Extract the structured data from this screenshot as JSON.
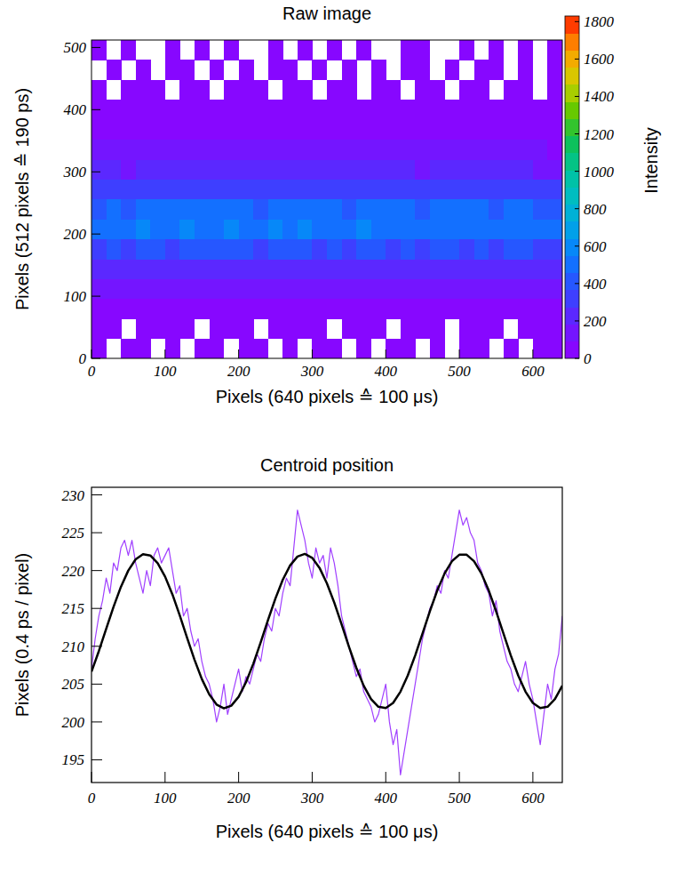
{
  "chart_data": [
    {
      "type": "heatmap",
      "title": "Raw image",
      "x_label": "Pixels (640 pixels ≙ 100 μs)",
      "y_label": "Pixels (512 pixels ≙ 190 ps)",
      "xlim": [
        0,
        640
      ],
      "ylim": [
        0,
        512
      ],
      "xticks": [
        0,
        100,
        200,
        300,
        400,
        500,
        600
      ],
      "yticks": [
        0,
        100,
        200,
        300,
        400,
        500
      ],
      "color_label": "Intensity",
      "color_range": [
        0,
        1830
      ],
      "color_ticks": [
        0,
        200,
        400,
        600,
        800,
        1000,
        1200,
        1400,
        1600,
        1800
      ],
      "x_bins": [
        0,
        20,
        40,
        60,
        80,
        100,
        120,
        140,
        160,
        180,
        200,
        220,
        240,
        260,
        280,
        300,
        320,
        340,
        360,
        380,
        400,
        420,
        440,
        460,
        480,
        500,
        520,
        540,
        560,
        580,
        600,
        620,
        640
      ],
      "y_bins": [
        0,
        32,
        64,
        96,
        128,
        160,
        192,
        224,
        256,
        288,
        320,
        352,
        384,
        416,
        448,
        480,
        512
      ],
      "cells": [
        [
          12,
          0,
          18,
          25,
          0,
          10,
          0,
          15,
          22,
          0,
          8,
          14,
          0,
          20,
          0,
          11,
          16,
          0,
          9,
          0,
          24,
          13,
          0,
          17,
          0,
          10,
          21,
          0,
          14,
          0,
          19,
          8
        ],
        [
          28,
          20,
          0,
          31,
          24,
          18,
          35,
          0,
          22,
          27,
          30,
          0,
          26,
          19,
          33,
          21,
          0,
          29,
          25,
          17,
          0,
          32,
          23,
          28,
          0,
          20,
          26,
          34,
          0,
          24,
          18,
          30
        ],
        [
          48,
          55,
          42,
          60,
          51,
          46,
          58,
          44,
          53,
          62,
          49,
          45,
          57,
          50,
          61,
          47,
          52,
          43,
          59,
          54,
          48,
          56,
          41,
          63,
          50,
          46,
          55,
          49,
          58,
          44,
          52,
          47
        ],
        [
          105,
          118,
          96,
          124,
          110,
          102,
          130,
          99,
          115,
          127,
          108,
          95,
          121,
          113,
          134,
          101,
          117,
          98,
          125,
          111,
          104,
          129,
          97,
          119,
          112,
          106,
          123,
          100,
          116,
          109,
          103,
          94
        ],
        [
          210,
          235,
          198,
          242,
          220,
          205,
          250,
          215,
          228,
          245,
          212,
          200,
          238,
          224,
          255,
          209,
          231,
          202,
          246,
          218,
          207,
          240,
          196,
          233,
          219,
          211,
          236,
          204,
          226,
          214,
          199,
          192
        ],
        [
          360,
          395,
          340,
          405,
          372,
          355,
          420,
          366,
          388,
          410,
          378,
          350,
          400,
          382,
          425,
          361,
          392,
          348,
          415,
          370,
          357,
          402,
          345,
          390,
          368,
          362,
          398,
          352,
          385,
          371,
          344,
          336
        ],
        [
          480,
          530,
          470,
          555,
          505,
          495,
          575,
          500,
          540,
          560,
          515,
          490,
          550,
          525,
          580,
          498,
          545,
          485,
          565,
          510,
          492,
          548,
          478,
          535,
          512,
          500,
          542,
          488,
          520,
          506,
          472,
          460
        ],
        [
          450,
          490,
          440,
          505,
          470,
          462,
          520,
          466,
          488,
          512,
          475,
          455,
          498,
          480,
          525,
          458,
          492,
          448,
          510,
          472,
          460,
          495,
          445,
          485,
          468,
          462,
          490,
          452,
          478,
          466,
          438,
          430
        ],
        [
          320,
          345,
          310,
          355,
          330,
          322,
          362,
          326,
          342,
          358,
          333,
          315,
          350,
          336,
          365,
          318,
          344,
          312,
          356,
          329,
          320,
          347,
          308,
          340,
          328,
          322,
          346,
          314,
          334,
          327,
          306,
          300
        ],
        [
          190,
          210,
          182,
          218,
          198,
          192,
          225,
          195,
          206,
          222,
          200,
          185,
          214,
          202,
          228,
          188,
          208,
          183,
          220,
          197,
          190,
          211,
          180,
          205,
          196,
          192,
          209,
          186,
          201,
          195,
          178,
          172
        ],
        [
          105,
          118,
          98,
          124,
          110,
          103,
          128,
          106,
          115,
          126,
          109,
          100,
          121,
          112,
          130,
          102,
          116,
          97,
          125,
          108,
          104,
          119,
          96,
          114,
          107,
          103,
          117,
          99,
          111,
          106,
          94,
          90
        ],
        [
          58,
          66,
          52,
          70,
          61,
          56,
          73,
          59,
          64,
          71,
          60,
          54,
          68,
          62,
          75,
          55,
          65,
          51,
          72,
          60,
          57,
          67,
          50,
          63,
          59,
          56,
          66,
          53,
          61,
          58,
          49,
          46
        ],
        [
          34,
          40,
          30,
          42,
          36,
          33,
          45,
          35,
          38,
          43,
          36,
          31,
          41,
          37,
          46,
          32,
          39,
          29,
          44,
          35,
          33,
          40,
          28,
          38,
          35,
          32,
          39,
          30,
          36,
          34,
          27,
          25
        ],
        [
          20,
          0,
          24,
          18,
          26,
          0,
          21,
          17,
          0,
          23,
          19,
          25,
          0,
          22,
          16,
          0,
          27,
          18,
          0,
          20,
          24,
          0,
          19,
          21,
          0,
          17,
          23,
          0,
          20,
          18,
          0,
          22
        ],
        [
          0,
          14,
          0,
          11,
          0,
          16,
          9,
          0,
          13,
          0,
          12,
          0,
          15,
          10,
          0,
          14,
          0,
          11,
          0,
          13,
          0,
          9,
          15,
          0,
          12,
          0,
          10,
          14,
          0,
          11,
          0,
          13
        ],
        [
          8,
          0,
          12,
          0,
          0,
          10,
          0,
          9,
          0,
          14,
          0,
          0,
          11,
          0,
          8,
          0,
          13,
          0,
          10,
          0,
          0,
          9,
          12,
          0,
          0,
          11,
          0,
          8,
          0,
          10,
          0,
          12
        ]
      ]
    },
    {
      "type": "line",
      "title": "Centroid position",
      "x_label": "Pixels (640 pixels ≙ 100 μs)",
      "y_label": "Pixels (0.4 ps / pixel)",
      "xlim": [
        0,
        640
      ],
      "ylim": [
        192,
        231
      ],
      "xticks": [
        0,
        100,
        200,
        300,
        400,
        500,
        600
      ],
      "yticks": [
        195,
        200,
        205,
        210,
        215,
        220,
        225,
        230
      ],
      "series": [
        {
          "color": "#a040ff",
          "x": [
            0,
            5,
            10,
            15,
            20,
            25,
            30,
            35,
            40,
            45,
            50,
            55,
            60,
            65,
            70,
            75,
            80,
            85,
            90,
            95,
            100,
            105,
            110,
            115,
            120,
            125,
            130,
            135,
            140,
            145,
            150,
            155,
            160,
            165,
            170,
            175,
            180,
            185,
            190,
            195,
            200,
            205,
            210,
            215,
            220,
            225,
            230,
            235,
            240,
            245,
            250,
            255,
            260,
            265,
            270,
            275,
            280,
            285,
            290,
            295,
            300,
            305,
            310,
            315,
            320,
            325,
            330,
            335,
            340,
            345,
            350,
            355,
            360,
            365,
            370,
            375,
            380,
            385,
            390,
            395,
            400,
            405,
            410,
            415,
            420,
            425,
            430,
            435,
            440,
            445,
            450,
            455,
            460,
            465,
            470,
            475,
            480,
            485,
            490,
            495,
            500,
            505,
            510,
            515,
            520,
            525,
            530,
            535,
            540,
            545,
            550,
            555,
            560,
            565,
            570,
            575,
            580,
            585,
            590,
            595,
            600,
            605,
            610,
            615,
            620,
            625,
            630,
            635,
            640
          ],
          "values": [
            207,
            211,
            214,
            216,
            219,
            217,
            221,
            220,
            223,
            224,
            222,
            224,
            221,
            219,
            217,
            220,
            218,
            222,
            223,
            221,
            222,
            223,
            220,
            217,
            218,
            214,
            215,
            212,
            210,
            211,
            208,
            206,
            205,
            203,
            200,
            202,
            205,
            201,
            203,
            205,
            207,
            204,
            206,
            205,
            207,
            209,
            208,
            211,
            213,
            212,
            215,
            214,
            217,
            219,
            218,
            223,
            228,
            226,
            224,
            221,
            219,
            223,
            221,
            222,
            219,
            223,
            221,
            218,
            214,
            212,
            210,
            208,
            206,
            207,
            204,
            203,
            202,
            200,
            201,
            203,
            205,
            200,
            197,
            199,
            193,
            196,
            199,
            202,
            205,
            208,
            211,
            213,
            215,
            216,
            218,
            217,
            220,
            219,
            222,
            225,
            228,
            226,
            227,
            225,
            224,
            221,
            220,
            218,
            217,
            214,
            216,
            212,
            210,
            208,
            207,
            205,
            204,
            206,
            208,
            205,
            203,
            200,
            197,
            201,
            205,
            203,
            207,
            209,
            214
          ]
        },
        {
          "color": "#000000",
          "x": [
            0,
            10,
            20,
            30,
            40,
            50,
            60,
            70,
            80,
            90,
            100,
            110,
            120,
            130,
            140,
            150,
            160,
            170,
            180,
            190,
            200,
            210,
            220,
            230,
            240,
            250,
            260,
            270,
            280,
            290,
            300,
            310,
            320,
            330,
            340,
            350,
            360,
            370,
            380,
            390,
            400,
            410,
            420,
            430,
            440,
            450,
            460,
            470,
            480,
            490,
            500,
            510,
            520,
            530,
            540,
            550,
            560,
            570,
            580,
            590,
            600,
            610,
            620,
            630,
            640
          ],
          "values": [
            206.64,
            209.36,
            212.3,
            215.21,
            217.85,
            220.0,
            221.48,
            222.16,
            221.99,
            220.98,
            219.21,
            216.85,
            214.07,
            211.11,
            208.23,
            205.67,
            203.65,
            202.3,
            201.8,
            202.15,
            203.32,
            205.24,
            207.7,
            210.52,
            213.48,
            216.3,
            218.78,
            220.68,
            221.85,
            222.2,
            221.68,
            220.35,
            218.32,
            215.77,
            212.89,
            209.93,
            207.15,
            204.79,
            203.02,
            202.01,
            201.84,
            202.51,
            204.0,
            206.15,
            208.79,
            211.7,
            214.64,
            217.36,
            219.62,
            221.24,
            222.09,
            222.09,
            221.24,
            219.62,
            217.36,
            214.64,
            211.7,
            208.79,
            206.15,
            204.0,
            202.51,
            201.84,
            202.01,
            203.02,
            204.79
          ]
        }
      ]
    }
  ]
}
